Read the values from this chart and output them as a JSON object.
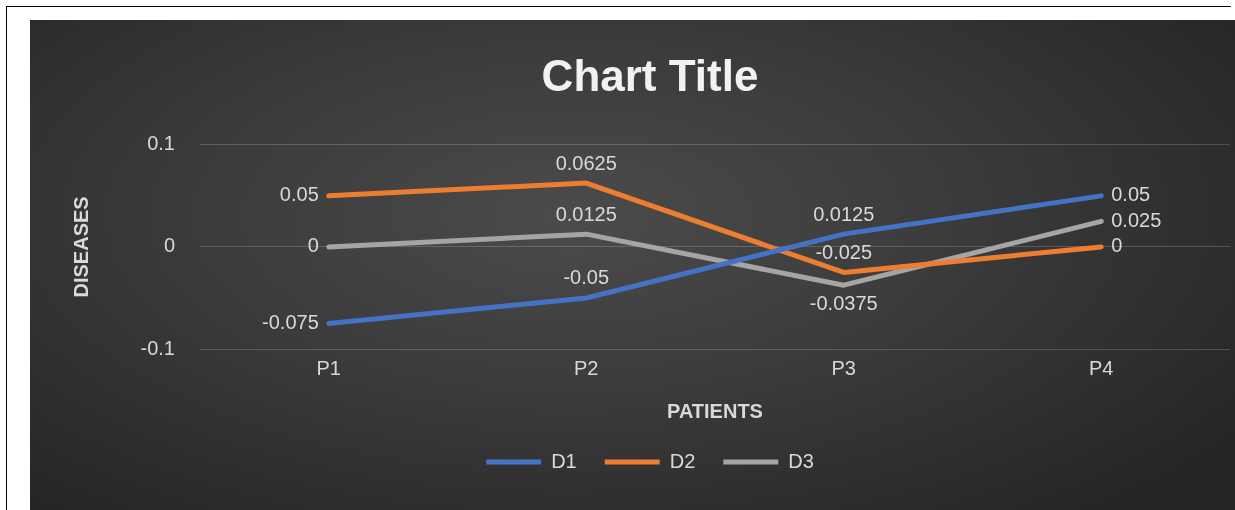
{
  "chart_data": {
    "type": "line",
    "title": "Chart Title",
    "xlabel": "PATIENTS",
    "ylabel": "DISEASES",
    "categories": [
      "P1",
      "P2",
      "P3",
      "P4"
    ],
    "series": [
      {
        "name": "D1",
        "color": "#4472c4",
        "values": [
          -0.075,
          -0.05,
          0.0125,
          0.05
        ]
      },
      {
        "name": "D2",
        "color": "#ed7d31",
        "values": [
          0.05,
          0.0625,
          -0.025,
          0
        ]
      },
      {
        "name": "D3",
        "color": "#a5a5a5",
        "values": [
          0,
          0.0125,
          -0.0375,
          0.025
        ]
      }
    ],
    "ylim": [
      -0.1,
      0.1
    ],
    "yticks": [
      -0.1,
      0,
      0.1
    ],
    "grid": "y",
    "legend": "bottom",
    "data_labels": true
  }
}
